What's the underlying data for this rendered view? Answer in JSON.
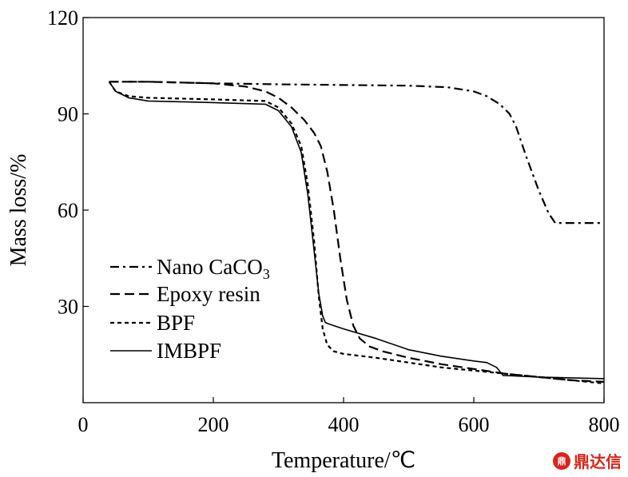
{
  "chart_data": {
    "type": "line",
    "xlabel": "Temperature/℃",
    "ylabel": "Mass loss/%",
    "xlim": [
      0,
      800
    ],
    "ylim": [
      0,
      120
    ],
    "xticks": [
      0,
      200,
      400,
      600,
      800
    ],
    "yticks": [
      30,
      60,
      90,
      120
    ],
    "grid": false,
    "legend_position": "lower-left",
    "series": [
      {
        "name": "Nano CaCO",
        "name_subscript": "3",
        "dash": "dashdot",
        "x": [
          40,
          100,
          200,
          300,
          400,
          500,
          560,
          600,
          620,
          640,
          655,
          665,
          680,
          700,
          715,
          725,
          800
        ],
        "y": [
          100,
          100,
          99.5,
          99.2,
          99,
          98.8,
          98.3,
          97,
          95.5,
          93,
          90,
          86,
          77,
          66,
          59,
          56,
          56
        ]
      },
      {
        "name": "Epoxy resin",
        "dash": "dashed",
        "x": [
          40,
          100,
          200,
          250,
          280,
          300,
          320,
          340,
          355,
          365,
          375,
          385,
          395,
          405,
          415,
          425,
          440,
          460,
          500,
          550,
          600,
          650,
          700,
          750,
          800
        ],
        "y": [
          100,
          100,
          99.5,
          98.5,
          97,
          95,
          92,
          88,
          84,
          80,
          72,
          60,
          45,
          32,
          24,
          20,
          17.5,
          16,
          14,
          12,
          10.5,
          9,
          8,
          7,
          6.5
        ]
      },
      {
        "name": "BPF",
        "dash": "dotted",
        "x": [
          40,
          50,
          70,
          100,
          200,
          280,
          300,
          320,
          335,
          345,
          355,
          362,
          368,
          375,
          385,
          400,
          450,
          500,
          550,
          600,
          650,
          700,
          750,
          800
        ],
        "y": [
          100,
          97,
          95.5,
          95,
          94.5,
          94,
          92,
          87,
          80,
          68,
          50,
          33,
          23,
          18,
          16,
          15.2,
          14,
          12.5,
          11,
          10,
          9,
          8,
          7,
          6
        ]
      },
      {
        "name": "IMBPF",
        "dash": "solid",
        "x": [
          40,
          50,
          70,
          100,
          200,
          280,
          300,
          320,
          335,
          345,
          355,
          362,
          368,
          372,
          378,
          400,
          450,
          500,
          550,
          600,
          620,
          635,
          645,
          700,
          800
        ],
        "y": [
          100,
          97,
          95,
          94,
          93.5,
          93,
          91,
          86,
          78,
          65,
          47,
          34,
          27,
          25,
          24.5,
          23,
          20,
          16.5,
          14.5,
          13,
          12.5,
          11,
          8.5,
          8,
          7.5
        ]
      }
    ]
  },
  "watermark": "鼎达信"
}
